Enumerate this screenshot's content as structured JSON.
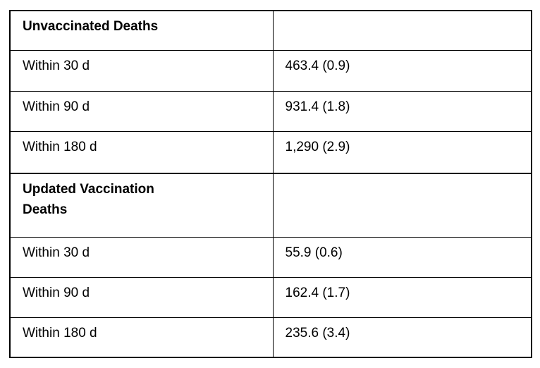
{
  "table": {
    "rows": [
      {
        "label": "Unvaccinated Deaths",
        "value": "",
        "is_section_header": true
      },
      {
        "label": "Within 30 d",
        "value": "463.4 (0.9)"
      },
      {
        "label": "Within 90 d",
        "value": "931.4 (1.8)"
      },
      {
        "label": "Within 180 d",
        "value": "1,290 (2.9)"
      },
      {
        "label": "Updated Vaccination\nDeaths",
        "value": "",
        "is_section_header": true
      },
      {
        "label": "Within 30 d",
        "value": "55.9 (0.6)"
      },
      {
        "label": "Within 90 d",
        "value": "162.4 (1.7)"
      },
      {
        "label": "Within 180 d",
        "value": "235.6 (3.4)"
      }
    ],
    "colors": {
      "border": "#000000",
      "text": "#000000",
      "background": "#ffffff"
    }
  }
}
